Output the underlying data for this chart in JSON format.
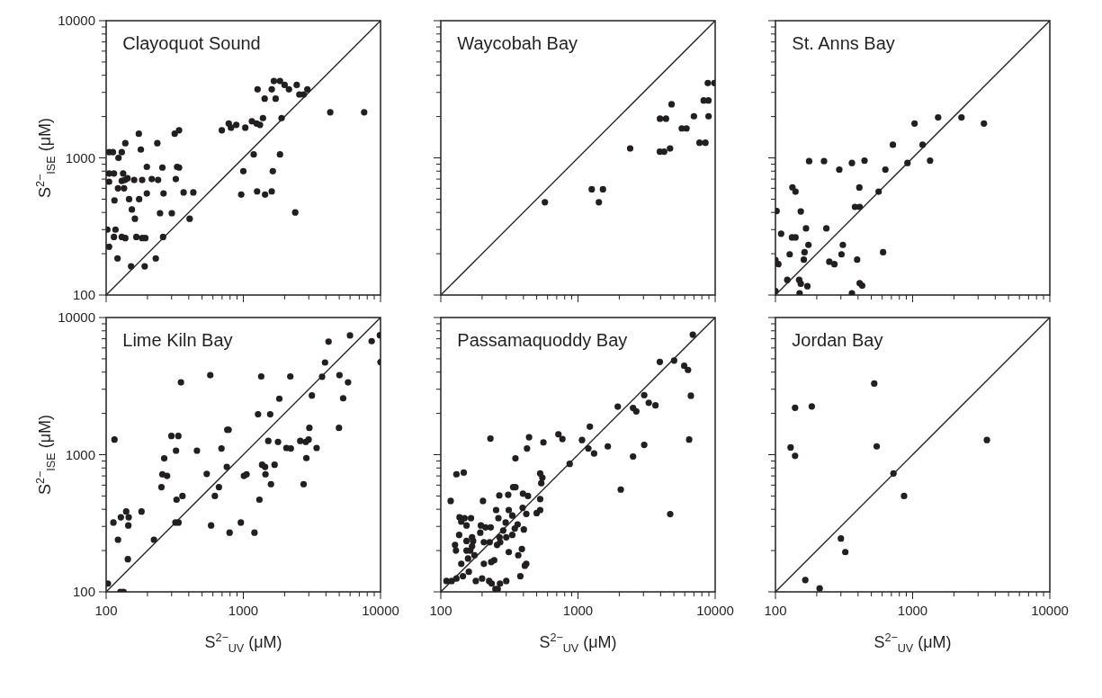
{
  "chart_data": [
    {
      "type": "scatter",
      "title": "Clayoquot Sound",
      "ylabel": "S$^{2−}$$_{ISE}$ (μM)",
      "log": "xy",
      "tick_labels": "y",
      "xlim": [
        100,
        10000
      ],
      "ylim": [
        100,
        10000
      ],
      "xticks": [
        100,
        {
          "value": 200,
          "label": null
        },
        {
          "value": 300,
          "label": null
        },
        {
          "value": 400,
          "label": null
        },
        {
          "value": 500,
          "label": null
        },
        {
          "value": 600,
          "label": null
        },
        {
          "value": 700,
          "label": null
        },
        {
          "value": 800,
          "label": null
        },
        {
          "value": 900,
          "label": null
        },
        1000,
        {
          "value": 2000,
          "label": null
        },
        {
          "value": 3000,
          "label": null
        },
        {
          "value": 4000,
          "label": null
        },
        {
          "value": 5000,
          "label": null
        },
        {
          "value": 6000,
          "label": null
        },
        {
          "value": 7000,
          "label": null
        },
        {
          "value": 8000,
          "label": null
        },
        {
          "value": 9000,
          "label": null
        },
        10000
      ],
      "yticks": [
        100,
        {
          "value": 200,
          "label": null
        },
        {
          "value": 300,
          "label": null
        },
        {
          "value": 400,
          "label": null
        },
        {
          "value": 500,
          "label": null
        },
        {
          "value": 600,
          "label": null
        },
        {
          "value": 700,
          "label": null
        },
        {
          "value": 800,
          "label": null
        },
        {
          "value": 900,
          "label": null
        },
        1000,
        {
          "value": 2000,
          "label": null
        },
        {
          "value": 3000,
          "label": null
        },
        {
          "value": 4000,
          "label": null
        },
        {
          "value": 5000,
          "label": null
        },
        {
          "value": 6000,
          "label": null
        },
        {
          "value": 7000,
          "label": null
        },
        {
          "value": 8000,
          "label": null
        },
        {
          "value": 9000,
          "label": null
        },
        10000
      ],
      "series": [
        {
          "type": "line",
          "color": "#231f20",
          "x": [
            100,
            10000
          ],
          "values": [
            100,
            10000
          ],
          "marker": "none"
        },
        {
          "color": "#231f20",
          "marker": "circle",
          "x": [
            105,
            112,
            130,
            138,
            123,
            105,
            114,
            105,
            133,
            130,
            143,
            137,
            122,
            135,
            160,
            183,
            198,
            173,
            179,
            215,
            239,
            236,
            257,
            316,
            340,
            329,
            340,
            322,
            115,
            147,
            174,
            198,
            262,
            367,
            432,
            154,
            162,
            247,
            301,
            406,
            102,
            117,
            114,
            130,
            138,
            166,
            183,
            193,
            260,
            105,
            121,
            152,
            191,
            230,
            697,
            783,
            813,
            888,
            1033,
            1155,
            1250,
            1322,
            1390,
            1270,
            1430,
            1610,
            1670,
            1850,
            1720,
            2000,
            2150,
            2450,
            2560,
            2750,
            2930,
            1900,
            4300,
            7600,
            1190,
            1850,
            1000,
            1640,
            965,
            1260,
            1440,
            1610,
            2390
          ],
          "values": [
            1100,
            1100,
            1100,
            1280,
            1000,
            770,
            770,
            670,
            770,
            680,
            710,
            690,
            600,
            600,
            690,
            690,
            860,
            1500,
            1150,
            700,
            690,
            1280,
            850,
            1500,
            1590,
            860,
            850,
            700,
            490,
            500,
            500,
            550,
            550,
            560,
            560,
            420,
            360,
            395,
            395,
            360,
            300,
            300,
            265,
            265,
            260,
            265,
            260,
            260,
            265,
            225,
            185,
            162,
            162,
            185,
            1590,
            1780,
            1660,
            1740,
            1660,
            1850,
            1780,
            1740,
            1950,
            3160,
            2700,
            3160,
            3630,
            3630,
            2700,
            3400,
            3160,
            3400,
            2900,
            2900,
            3160,
            1950,
            2150,
            2150,
            1060,
            1060,
            800,
            800,
            540,
            570,
            540,
            570,
            400
          ]
        }
      ]
    },
    {
      "type": "scatter",
      "title": "Waycobah Bay",
      "log": "xy",
      "tick_labels": false,
      "xlim": [
        100,
        10000
      ],
      "ylim": [
        100,
        10000
      ],
      "xticks": [
        100,
        {
          "value": 200,
          "label": null
        },
        {
          "value": 300,
          "label": null
        },
        {
          "value": 400,
          "label": null
        },
        {
          "value": 500,
          "label": null
        },
        {
          "value": 600,
          "label": null
        },
        {
          "value": 700,
          "label": null
        },
        {
          "value": 800,
          "label": null
        },
        {
          "value": 900,
          "label": null
        },
        1000,
        {
          "value": 2000,
          "label": null
        },
        {
          "value": 3000,
          "label": null
        },
        {
          "value": 4000,
          "label": null
        },
        {
          "value": 5000,
          "label": null
        },
        {
          "value": 6000,
          "label": null
        },
        {
          "value": 7000,
          "label": null
        },
        {
          "value": 8000,
          "label": null
        },
        {
          "value": 9000,
          "label": null
        },
        10000
      ],
      "yticks": [
        100,
        {
          "value": 200,
          "label": null
        },
        {
          "value": 300,
          "label": null
        },
        {
          "value": 400,
          "label": null
        },
        {
          "value": 500,
          "label": null
        },
        {
          "value": 600,
          "label": null
        },
        {
          "value": 700,
          "label": null
        },
        {
          "value": 800,
          "label": null
        },
        {
          "value": 900,
          "label": null
        },
        1000,
        {
          "value": 2000,
          "label": null
        },
        {
          "value": 3000,
          "label": null
        },
        {
          "value": 4000,
          "label": null
        },
        {
          "value": 5000,
          "label": null
        },
        {
          "value": 6000,
          "label": null
        },
        {
          "value": 7000,
          "label": null
        },
        {
          "value": 8000,
          "label": null
        },
        {
          "value": 9000,
          "label": null
        },
        10000
      ],
      "series": [
        {
          "type": "line",
          "color": "#231f20",
          "x": [
            100,
            10000
          ],
          "values": [
            100,
            10000
          ],
          "marker": "none"
        },
        {
          "color": "#231f20",
          "marker": "circle",
          "x": [
            574,
            1260,
            1520,
            1420,
            2400,
            3950,
            4250,
            4690,
            3960,
            4380,
            4810,
            5710,
            6180,
            7000,
            7690,
            8490,
            8240,
            8930,
            8950,
            8840,
            9860
          ],
          "values": [
            475,
            590,
            590,
            475,
            1170,
            1110,
            1110,
            1170,
            1930,
            1930,
            2460,
            1640,
            1640,
            2010,
            1290,
            1290,
            2620,
            2620,
            2010,
            3510,
            3510
          ]
        }
      ]
    },
    {
      "type": "scatter",
      "title": "St. Anns Bay",
      "log": "xy",
      "tick_labels": false,
      "xlim": [
        100,
        10000
      ],
      "ylim": [
        100,
        10000
      ],
      "xticks": [
        100,
        {
          "value": 200,
          "label": null
        },
        {
          "value": 300,
          "label": null
        },
        {
          "value": 400,
          "label": null
        },
        {
          "value": 500,
          "label": null
        },
        {
          "value": 600,
          "label": null
        },
        {
          "value": 700,
          "label": null
        },
        {
          "value": 800,
          "label": null
        },
        {
          "value": 900,
          "label": null
        },
        1000,
        {
          "value": 2000,
          "label": null
        },
        {
          "value": 3000,
          "label": null
        },
        {
          "value": 4000,
          "label": null
        },
        {
          "value": 5000,
          "label": null
        },
        {
          "value": 6000,
          "label": null
        },
        {
          "value": 7000,
          "label": null
        },
        {
          "value": 8000,
          "label": null
        },
        {
          "value": 9000,
          "label": null
        },
        10000
      ],
      "yticks": [
        100,
        {
          "value": 200,
          "label": null
        },
        {
          "value": 300,
          "label": null
        },
        {
          "value": 400,
          "label": null
        },
        {
          "value": 500,
          "label": null
        },
        {
          "value": 600,
          "label": null
        },
        {
          "value": 700,
          "label": null
        },
        {
          "value": 800,
          "label": null
        },
        {
          "value": 900,
          "label": null
        },
        1000,
        {
          "value": 2000,
          "label": null
        },
        {
          "value": 3000,
          "label": null
        },
        {
          "value": 4000,
          "label": null
        },
        {
          "value": 5000,
          "label": null
        },
        {
          "value": 6000,
          "label": null
        },
        {
          "value": 7000,
          "label": null
        },
        {
          "value": 8000,
          "label": null
        },
        {
          "value": 9000,
          "label": null
        },
        10000
      ],
      "series": [
        {
          "type": "line",
          "color": "#231f20",
          "x": [
            100,
            10000
          ],
          "values": [
            100,
            10000
          ],
          "marker": "none"
        },
        {
          "color": "#231f20",
          "marker": "circle",
          "x": [
            102,
            100,
            105,
            100,
            110,
            122,
            127,
            132,
            140,
            133,
            140,
            153,
            149,
            153,
            171,
            150,
            163,
            161,
            174,
            167,
            176,
            226,
            235,
            247,
            269,
            292,
            303,
            310,
            361,
            446,
            409,
            380,
            411,
            394,
            361,
            411,
            429,
            565,
            609,
            633,
            718,
            917,
            1033,
            1182,
            1340,
            1534,
            2270,
            3310
          ],
          "values": [
            410,
            180,
            168,
            107,
            280,
            129,
            198,
            263,
            263,
            610,
            567,
            407,
            129,
            121,
            116,
            103,
            205,
            181,
            232,
            306,
            946,
            946,
            306,
            175,
            168,
            822,
            198,
            232,
            918,
            955,
            608,
            439,
            439,
            181,
            103,
            122,
            117,
            567,
            205,
            822,
            1247,
            918,
            1780,
            1247,
            955,
            1970,
            1970,
            1780
          ]
        }
      ]
    },
    {
      "type": "scatter",
      "title": "Lime Kiln Bay",
      "xlabel": "S$^{2−}$$_{UV}$ (μM)",
      "ylabel": "S$^{2−}$$_{ISE}$ (μM)",
      "log": "xy",
      "xlim": [
        100,
        10000
      ],
      "ylim": [
        100,
        10000
      ],
      "xticks": [
        100,
        {
          "value": 200,
          "label": null
        },
        {
          "value": 300,
          "label": null
        },
        {
          "value": 400,
          "label": null
        },
        {
          "value": 500,
          "label": null
        },
        {
          "value": 600,
          "label": null
        },
        {
          "value": 700,
          "label": null
        },
        {
          "value": 800,
          "label": null
        },
        {
          "value": 900,
          "label": null
        },
        1000,
        {
          "value": 2000,
          "label": null
        },
        {
          "value": 3000,
          "label": null
        },
        {
          "value": 4000,
          "label": null
        },
        {
          "value": 5000,
          "label": null
        },
        {
          "value": 6000,
          "label": null
        },
        {
          "value": 7000,
          "label": null
        },
        {
          "value": 8000,
          "label": null
        },
        {
          "value": 9000,
          "label": null
        },
        10000
      ],
      "yticks": [
        100,
        {
          "value": 200,
          "label": null
        },
        {
          "value": 300,
          "label": null
        },
        {
          "value": 400,
          "label": null
        },
        {
          "value": 500,
          "label": null
        },
        {
          "value": 600,
          "label": null
        },
        {
          "value": 700,
          "label": null
        },
        {
          "value": 800,
          "label": null
        },
        {
          "value": 900,
          "label": null
        },
        1000,
        {
          "value": 2000,
          "label": null
        },
        {
          "value": 3000,
          "label": null
        },
        {
          "value": 4000,
          "label": null
        },
        {
          "value": 5000,
          "label": null
        },
        {
          "value": 6000,
          "label": null
        },
        {
          "value": 7000,
          "label": null
        },
        {
          "value": 8000,
          "label": null
        },
        {
          "value": 9000,
          "label": null
        },
        10000
      ],
      "series": [
        {
          "type": "line",
          "color": "#231f20",
          "x": [
            100,
            10000
          ],
          "values": [
            100,
            10000
          ],
          "marker": "none"
        },
        {
          "color": "#231f20",
          "marker": "circle",
          "x": [
            115,
            113,
            122,
            128,
            140,
            146,
            145,
            144,
            181,
            223,
            253,
            257,
            278,
            265,
            299,
            336,
            323,
            326,
            360,
            320,
            337,
            351,
            459,
            541,
            574,
            582,
            620,
            664,
            693,
            758,
            764,
            781,
            794,
            959,
            1010,
            1055,
            1206,
            1310,
            1280,
            1350,
            1370,
            1440,
            1450,
            1520,
            1570,
            1590,
            1690,
            1790,
            1830,
            2060,
            2220,
            2200,
            2600,
            2750,
            2850,
            2880,
            2990,
            3030,
            3160,
            3420,
            3750,
            3940,
            4180,
            4980,
            5020,
            5340,
            5800,
            5990,
            8620,
            9900,
            10000,
            103,
            127,
            134
          ],
          "values": [
            1290,
            320,
            240,
            350,
            385,
            350,
            305,
            173,
            385,
            240,
            580,
            720,
            700,
            940,
            1370,
            1370,
            1070,
            470,
            500,
            320,
            320,
            3370,
            1070,
            725,
            3800,
            305,
            500,
            580,
            1110,
            815,
            1520,
            1520,
            270,
            320,
            700,
            720,
            270,
            470,
            1970,
            3720,
            845,
            815,
            720,
            1260,
            1970,
            610,
            845,
            1240,
            2560,
            1120,
            1110,
            3720,
            1260,
            610,
            1240,
            945,
            1290,
            1570,
            2700,
            1120,
            3700,
            4700,
            6670,
            1570,
            3800,
            2580,
            3370,
            7400,
            6730,
            7430,
            4730,
            115,
            100,
            100
          ]
        }
      ]
    },
    {
      "type": "scatter",
      "title": "Passamaquoddy Bay",
      "xlabel": "S$^{2−}$$_{UV}$ (μM)",
      "log": "xy",
      "tick_labels": "x",
      "xlim": [
        100,
        10000
      ],
      "ylim": [
        100,
        10000
      ],
      "xticks": [
        100,
        {
          "value": 200,
          "label": null
        },
        {
          "value": 300,
          "label": null
        },
        {
          "value": 400,
          "label": null
        },
        {
          "value": 500,
          "label": null
        },
        {
          "value": 600,
          "label": null
        },
        {
          "value": 700,
          "label": null
        },
        {
          "value": 800,
          "label": null
        },
        {
          "value": 900,
          "label": null
        },
        1000,
        {
          "value": 2000,
          "label": null
        },
        {
          "value": 3000,
          "label": null
        },
        {
          "value": 4000,
          "label": null
        },
        {
          "value": 5000,
          "label": null
        },
        {
          "value": 6000,
          "label": null
        },
        {
          "value": 7000,
          "label": null
        },
        {
          "value": 8000,
          "label": null
        },
        {
          "value": 9000,
          "label": null
        },
        10000
      ],
      "yticks": [
        100,
        {
          "value": 200,
          "label": null
        },
        {
          "value": 300,
          "label": null
        },
        {
          "value": 400,
          "label": null
        },
        {
          "value": 500,
          "label": null
        },
        {
          "value": 600,
          "label": null
        },
        {
          "value": 700,
          "label": null
        },
        {
          "value": 800,
          "label": null
        },
        {
          "value": 900,
          "label": null
        },
        1000,
        {
          "value": 2000,
          "label": null
        },
        {
          "value": 3000,
          "label": null
        },
        {
          "value": 4000,
          "label": null
        },
        {
          "value": 5000,
          "label": null
        },
        {
          "value": 6000,
          "label": null
        },
        {
          "value": 7000,
          "label": null
        },
        {
          "value": 8000,
          "label": null
        },
        {
          "value": 9000,
          "label": null
        },
        10000
      ],
      "series": [
        {
          "type": "line",
          "color": "#231f20",
          "x": [
            100,
            10000
          ],
          "values": [
            100,
            10000
          ],
          "marker": "none"
        },
        {
          "color": "#231f20",
          "marker": "circle",
          "x": [
            6870,
            3950,
            5020,
            5950,
            6340,
            6650,
            3040,
            3280,
            3670,
            1950,
            2520,
            2660,
            1220,
            1070,
            1190,
            1310,
            1650,
            3040,
            2520,
            6460,
            2050,
            4700,
            870,
            720,
            770,
            560,
            440,
            425,
            350,
            230,
            130,
            147,
            118,
            203,
            530,
            550,
            540,
            530,
            337,
            350,
            267,
            310,
            397,
            432,
            395,
            420,
            500,
            530,
            253,
            313,
            332,
            263,
            297,
            363,
            346,
            403,
            196,
            212,
            231,
            194,
            285,
            268,
            300,
            332,
            137,
            149,
            166,
            141,
            154,
            136,
            169,
            154,
            172,
            206,
            227,
            271,
            257,
            169,
            127,
            129,
            164,
            154,
            313,
            390,
            367,
            158,
            176,
            245,
            233,
            141,
            206,
            420,
            110,
            120,
            130,
            145,
            160,
            180,
            200,
            225,
            235,
            250,
            260,
            270,
            300,
            380,
            410
          ],
          "values": [
            7500,
            4750,
            4860,
            4450,
            4150,
            2690,
            2720,
            2390,
            2290,
            2240,
            2190,
            2070,
            1600,
            1280,
            1110,
            1020,
            1150,
            1180,
            970,
            1290,
            557,
            369,
            857,
            1410,
            1300,
            1230,
            1340,
            1110,
            940,
            1310,
            720,
            740,
            460,
            460,
            730,
            680,
            620,
            475,
            580,
            580,
            505,
            510,
            520,
            500,
            410,
            370,
            375,
            395,
            395,
            395,
            360,
            345,
            320,
            310,
            290,
            285,
            305,
            295,
            295,
            270,
            280,
            250,
            250,
            260,
            350,
            345,
            345,
            325,
            305,
            260,
            250,
            235,
            235,
            230,
            230,
            230,
            220,
            215,
            220,
            200,
            200,
            200,
            195,
            205,
            185,
            175,
            185,
            170,
            165,
            160,
            160,
            160,
            120,
            120,
            125,
            130,
            140,
            120,
            125,
            120,
            115,
            105,
            105,
            115,
            120,
            130,
            155
          ]
        }
      ]
    },
    {
      "type": "scatter",
      "title": "Jordan Bay",
      "xlabel": "S$^{2−}$$_{UV}$ (μM)",
      "log": "xy",
      "tick_labels": "x",
      "xlim": [
        100,
        10000
      ],
      "ylim": [
        100,
        10000
      ],
      "xticks": [
        100,
        {
          "value": 200,
          "label": null
        },
        {
          "value": 300,
          "label": null
        },
        {
          "value": 400,
          "label": null
        },
        {
          "value": 500,
          "label": null
        },
        {
          "value": 600,
          "label": null
        },
        {
          "value": 700,
          "label": null
        },
        {
          "value": 800,
          "label": null
        },
        {
          "value": 900,
          "label": null
        },
        1000,
        {
          "value": 2000,
          "label": null
        },
        {
          "value": 3000,
          "label": null
        },
        {
          "value": 4000,
          "label": null
        },
        {
          "value": 5000,
          "label": null
        },
        {
          "value": 6000,
          "label": null
        },
        {
          "value": 7000,
          "label": null
        },
        {
          "value": 8000,
          "label": null
        },
        {
          "value": 9000,
          "label": null
        },
        10000
      ],
      "yticks": [
        100,
        {
          "value": 200,
          "label": null
        },
        {
          "value": 300,
          "label": null
        },
        {
          "value": 400,
          "label": null
        },
        {
          "value": 500,
          "label": null
        },
        {
          "value": 600,
          "label": null
        },
        {
          "value": 700,
          "label": null
        },
        {
          "value": 800,
          "label": null
        },
        {
          "value": 900,
          "label": null
        },
        1000,
        {
          "value": 2000,
          "label": null
        },
        {
          "value": 3000,
          "label": null
        },
        {
          "value": 4000,
          "label": null
        },
        {
          "value": 5000,
          "label": null
        },
        {
          "value": 6000,
          "label": null
        },
        {
          "value": 7000,
          "label": null
        },
        {
          "value": 8000,
          "label": null
        },
        {
          "value": 9000,
          "label": null
        },
        10000
      ],
      "series": [
        {
          "type": "line",
          "color": "#231f20",
          "x": [
            100,
            10000
          ],
          "values": [
            100,
            10000
          ],
          "marker": "none"
        },
        {
          "color": "#231f20",
          "marker": "circle",
          "x": [
            525,
            139,
            184,
            129,
            139,
            547,
            3480,
            725,
            866,
            300,
            323,
            165,
            210
          ],
          "values": [
            3300,
            2200,
            2250,
            1130,
            980,
            1150,
            1280,
            730,
            500,
            245,
            195,
            122,
            106
          ]
        }
      ]
    }
  ]
}
